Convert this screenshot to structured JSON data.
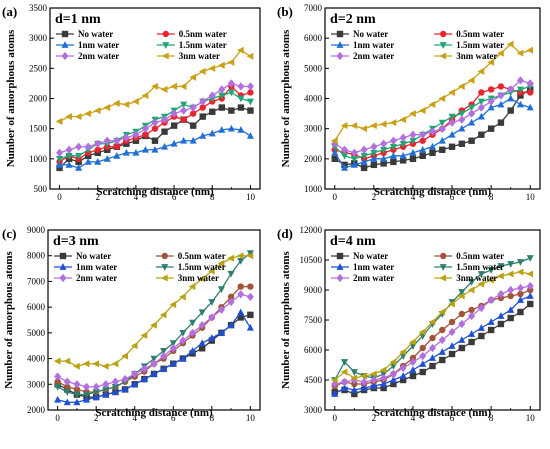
{
  "chart_data": [
    {
      "type": "line",
      "panel_label": "(a)",
      "title": "d=1 nm",
      "xlabel": "Scratching distance (nm)",
      "ylabel": "Number of amorphous atoms",
      "xlim": [
        -0.5,
        10.5
      ],
      "ylim": [
        500,
        3500
      ],
      "xticks": [
        0,
        2,
        4,
        6,
        8,
        10
      ],
      "yticks": [
        500,
        1000,
        1500,
        2000,
        2500,
        3000,
        3500
      ],
      "legend": "top-left, two columns",
      "x": [
        0,
        0.5,
        1,
        1.5,
        2,
        2.5,
        3,
        3.5,
        4,
        4.5,
        5,
        5.5,
        6,
        6.5,
        7,
        7.5,
        8,
        8.5,
        9,
        9.5,
        10
      ],
      "series": [
        {
          "name": "No water",
          "values": [
            850,
            1000,
            950,
            1050,
            1100,
            1150,
            1200,
            1250,
            1300,
            1380,
            1300,
            1450,
            1550,
            1650,
            1550,
            1700,
            1780,
            1850,
            1800,
            1850,
            1800
          ]
        },
        {
          "name": "0.5nm water",
          "values": [
            950,
            1050,
            1000,
            1100,
            1150,
            1200,
            1200,
            1300,
            1350,
            1400,
            1500,
            1600,
            1700,
            1650,
            1750,
            1850,
            1950,
            2000,
            2200,
            2050,
            2100
          ]
        },
        {
          "name": "1nm water",
          "values": [
            900,
            900,
            850,
            950,
            950,
            1000,
            1050,
            1100,
            1100,
            1150,
            1150,
            1200,
            1250,
            1300,
            1300,
            1380,
            1420,
            1480,
            1500,
            1480,
            1380
          ]
        },
        {
          "name": "1.5nm water",
          "values": [
            1000,
            1050,
            1050,
            1150,
            1250,
            1250,
            1300,
            1400,
            1450,
            1550,
            1650,
            1700,
            1800,
            1900,
            1850,
            1950,
            2000,
            2050,
            2100,
            2000,
            1950
          ]
        },
        {
          "name": "2nm water",
          "values": [
            1100,
            1150,
            1200,
            1200,
            1250,
            1300,
            1300,
            1350,
            1400,
            1500,
            1600,
            1650,
            1750,
            1800,
            1850,
            1950,
            2050,
            2150,
            2250,
            2200,
            2200
          ]
        },
        {
          "name": "3nm water",
          "values": [
            1620,
            1700,
            1700,
            1750,
            1800,
            1850,
            1920,
            1900,
            1950,
            2050,
            2200,
            2150,
            2200,
            2200,
            2350,
            2450,
            2500,
            2550,
            2600,
            2800,
            2700
          ]
        }
      ]
    },
    {
      "type": "line",
      "panel_label": "(b)",
      "title": "d=2 nm",
      "xlabel": "Scratching distance (nm)",
      "ylabel": "Number of amorphous atoms",
      "xlim": [
        -0.5,
        10.5
      ],
      "ylim": [
        1000,
        7000
      ],
      "xticks": [
        0,
        2,
        4,
        6,
        8,
        10
      ],
      "yticks": [
        1000,
        2000,
        3000,
        4000,
        5000,
        6000,
        7000
      ],
      "legend": "top-left, two columns",
      "x": [
        0,
        0.5,
        1,
        1.5,
        2,
        2.5,
        3,
        3.5,
        4,
        4.5,
        5,
        5.5,
        6,
        6.5,
        7,
        7.5,
        8,
        8.5,
        9,
        9.5,
        10
      ],
      "series": [
        {
          "name": "No water",
          "values": [
            2000,
            1800,
            1850,
            1700,
            1800,
            1850,
            1900,
            1950,
            2000,
            2100,
            2200,
            2300,
            2400,
            2500,
            2600,
            2800,
            3000,
            3200,
            3600,
            4100,
            4300
          ]
        },
        {
          "name": "0.5nm water",
          "values": [
            2300,
            2200,
            2150,
            2000,
            2100,
            2200,
            2300,
            2400,
            2500,
            2600,
            2800,
            3000,
            3300,
            3600,
            3800,
            4200,
            4300,
            4400,
            4300,
            4200,
            4200
          ]
        },
        {
          "name": "1nm water",
          "values": [
            2200,
            1700,
            1800,
            1900,
            2000,
            2000,
            2100,
            2100,
            2200,
            2300,
            2400,
            2600,
            2800,
            3000,
            3200,
            3400,
            3700,
            3800,
            4000,
            3800,
            3700
          ]
        },
        {
          "name": "1.5nm water",
          "values": [
            2400,
            2100,
            2000,
            2100,
            2200,
            2300,
            2400,
            2500,
            2600,
            2800,
            3000,
            3200,
            3400,
            3500,
            3700,
            3900,
            4000,
            4100,
            4200,
            4300,
            4400
          ]
        },
        {
          "name": "2nm water",
          "values": [
            2500,
            2300,
            2200,
            2300,
            2400,
            2500,
            2600,
            2700,
            2800,
            2800,
            2900,
            3000,
            3200,
            3300,
            3500,
            3700,
            3900,
            4100,
            4300,
            4600,
            4500
          ]
        },
        {
          "name": "3nm water",
          "values": [
            2600,
            3100,
            3100,
            3000,
            3100,
            3150,
            3200,
            3300,
            3500,
            3600,
            3800,
            4000,
            4200,
            4400,
            4600,
            4900,
            5200,
            5500,
            5800,
            5500,
            5600
          ]
        }
      ]
    },
    {
      "type": "line",
      "panel_label": "(c)",
      "title": "d=3 nm",
      "xlabel": "Scratching distance (nm)",
      "ylabel": "Number of amorphous atoms",
      "xlim": [
        -0.5,
        10.5
      ],
      "ylim": [
        2000,
        9000
      ],
      "xticks": [
        0,
        2,
        4,
        6,
        8,
        10
      ],
      "yticks": [
        2000,
        3000,
        4000,
        5000,
        6000,
        7000,
        8000,
        9000
      ],
      "legend": "top-left, two columns",
      "x": [
        0,
        0.5,
        1,
        1.5,
        2,
        2.5,
        3,
        3.5,
        4,
        4.5,
        5,
        5.5,
        6,
        6.5,
        7,
        7.5,
        8,
        8.5,
        9,
        9.5,
        10
      ],
      "series": [
        {
          "name": "No water",
          "values": [
            3000,
            2800,
            2600,
            2500,
            2500,
            2600,
            2700,
            2800,
            3000,
            3200,
            3400,
            3600,
            3800,
            4000,
            4200,
            4400,
            4700,
            5000,
            5300,
            5600,
            5700
          ]
        },
        {
          "name": "0.5nm water",
          "values": [
            3100,
            2900,
            2800,
            2700,
            2700,
            2800,
            2900,
            3100,
            3300,
            3500,
            3800,
            4000,
            4300,
            4600,
            4900,
            5200,
            5600,
            6000,
            6400,
            6800,
            6800
          ]
        },
        {
          "name": "1nm water",
          "values": [
            2400,
            2300,
            2300,
            2400,
            2500,
            2600,
            2700,
            2800,
            3000,
            3200,
            3400,
            3600,
            3800,
            4000,
            4300,
            4600,
            4800,
            5000,
            5300,
            5800,
            5200
          ]
        },
        {
          "name": "1.5nm water",
          "values": [
            2900,
            2700,
            2600,
            2600,
            2700,
            2800,
            2900,
            3100,
            3400,
            3700,
            4000,
            4300,
            4600,
            5000,
            5400,
            5800,
            6200,
            6700,
            7300,
            7800,
            8100
          ]
        },
        {
          "name": "2nm water",
          "values": [
            3300,
            3100,
            3000,
            2900,
            2900,
            3000,
            3100,
            3200,
            3400,
            3600,
            3800,
            4100,
            4400,
            4700,
            5000,
            5300,
            5600,
            5900,
            6200,
            6500,
            6400
          ]
        },
        {
          "name": "3nm water",
          "values": [
            3900,
            3900,
            3700,
            3800,
            3800,
            3700,
            3800,
            4100,
            4500,
            4900,
            5300,
            5700,
            6100,
            6400,
            6800,
            7100,
            7400,
            7700,
            7900,
            8000,
            8000
          ]
        }
      ]
    },
    {
      "type": "line",
      "panel_label": "(d)",
      "title": "d=4 nm",
      "xlabel": "Scratching distance (nm)",
      "ylabel": "Number of amorphous atoms",
      "xlim": [
        -0.5,
        10.5
      ],
      "ylim": [
        3000,
        12000
      ],
      "xticks": [
        0,
        2,
        4,
        6,
        8,
        10
      ],
      "yticks": [
        3000,
        4500,
        6000,
        7500,
        9000,
        10500,
        12000
      ],
      "legend": "top-left, two columns",
      "x": [
        0,
        0.5,
        1,
        1.5,
        2,
        2.5,
        3,
        3.5,
        4,
        4.5,
        5,
        5.5,
        6,
        6.5,
        7,
        7.5,
        8,
        8.5,
        9,
        9.5,
        10
      ],
      "series": [
        {
          "name": "No water",
          "values": [
            3900,
            4000,
            3800,
            4000,
            4100,
            4100,
            4300,
            4500,
            4700,
            4900,
            5200,
            5500,
            5800,
            6100,
            6400,
            6700,
            7000,
            7300,
            7600,
            7900,
            8300
          ]
        },
        {
          "name": "0.5nm water",
          "values": [
            4200,
            4400,
            4300,
            4300,
            4400,
            4500,
            4800,
            5200,
            5600,
            6100,
            6600,
            7000,
            7400,
            7800,
            8000,
            8200,
            8500,
            8600,
            8700,
            8800,
            9000
          ]
        },
        {
          "name": "1nm water",
          "values": [
            3800,
            4100,
            4000,
            4100,
            4200,
            4300,
            4500,
            4700,
            5000,
            5300,
            5600,
            5900,
            6200,
            6500,
            6800,
            7100,
            7400,
            7700,
            8000,
            8500,
            8700
          ]
        },
        {
          "name": "1.5nm water",
          "values": [
            4500,
            5400,
            4900,
            4700,
            4600,
            4800,
            5200,
            5700,
            6200,
            6700,
            7300,
            7800,
            8400,
            8900,
            9400,
            9800,
            10000,
            10200,
            10300,
            10400,
            10600
          ]
        },
        {
          "name": "2nm water",
          "values": [
            4300,
            4400,
            4500,
            4400,
            4500,
            4600,
            4800,
            5100,
            5400,
            5700,
            6100,
            6500,
            6900,
            7300,
            7700,
            8100,
            8500,
            8800,
            9000,
            9100,
            9200
          ]
        },
        {
          "name": "3nm water",
          "values": [
            4500,
            4900,
            4600,
            4700,
            4800,
            5000,
            5400,
            5900,
            6400,
            6900,
            7400,
            7900,
            8300,
            8700,
            9000,
            9300,
            9500,
            9700,
            9800,
            9900,
            9800
          ]
        }
      ]
    }
  ],
  "series_styles": [
    {
      "color": "#3a3a3a",
      "marker": "square"
    },
    {
      "color": "#e8242f",
      "marker": "circle"
    },
    {
      "color": "#1f6fd6",
      "marker": "triangle-up"
    },
    {
      "color": "#1fa675",
      "marker": "triangle-down"
    },
    {
      "color": "#b36fe0",
      "marker": "diamond"
    },
    {
      "color": "#c9a016",
      "marker": "triangle-left"
    }
  ],
  "series_styles_c": [
    {
      "color": "#3a3a3a",
      "marker": "square"
    },
    {
      "color": "#a0553a",
      "marker": "circle"
    },
    {
      "color": "#1f4fd6",
      "marker": "triangle-up"
    },
    {
      "color": "#2f7f6f",
      "marker": "triangle-down"
    },
    {
      "color": "#b36fe0",
      "marker": "diamond"
    },
    {
      "color": "#b9a216",
      "marker": "triangle-left"
    }
  ]
}
